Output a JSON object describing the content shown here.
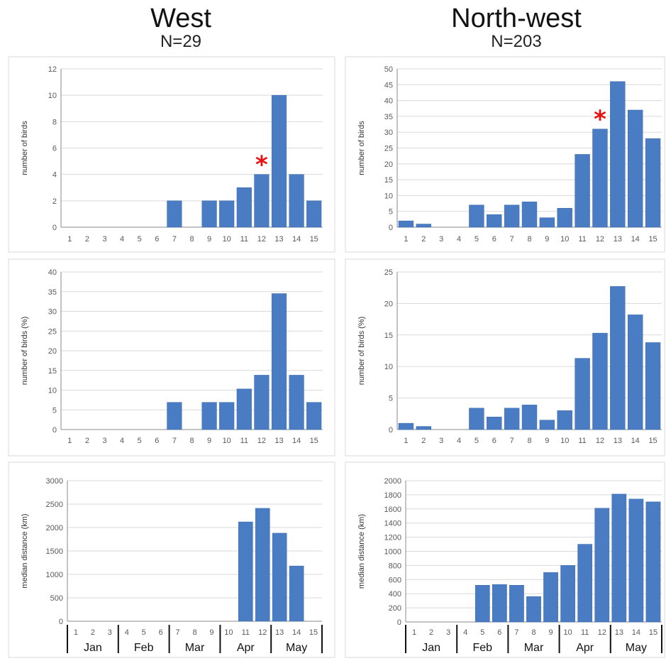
{
  "headers": {
    "left_title": "West",
    "left_n": "N=29",
    "right_title": "North-west",
    "right_n": "N=203"
  },
  "months": [
    "Jan",
    "Feb",
    "Mar",
    "Apr",
    "May"
  ],
  "colors": {
    "bar": "#4a7cc4",
    "star": "#e81010"
  },
  "chart_data": [
    {
      "id": "west-count",
      "type": "bar",
      "categories": [
        "1",
        "2",
        "3",
        "4",
        "5",
        "6",
        "7",
        "8",
        "9",
        "10",
        "11",
        "12",
        "13",
        "14",
        "15"
      ],
      "values": [
        0,
        0,
        0,
        0,
        0,
        0,
        2,
        0,
        2,
        2,
        3,
        4,
        10,
        4,
        2
      ],
      "ylabel": "number of birds",
      "ylim": [
        0,
        12
      ],
      "yticks": [
        0,
        2,
        4,
        6,
        8,
        10,
        12
      ],
      "grid": true,
      "annotation": {
        "symbol": "*",
        "category": "12"
      }
    },
    {
      "id": "northwest-count",
      "type": "bar",
      "categories": [
        "1",
        "2",
        "3",
        "4",
        "5",
        "6",
        "7",
        "8",
        "9",
        "10",
        "11",
        "12",
        "13",
        "14",
        "15"
      ],
      "values": [
        2,
        1,
        0,
        0,
        7,
        4,
        7,
        8,
        3,
        6,
        23,
        31,
        46,
        37,
        28
      ],
      "ylabel": "number of birds",
      "ylim": [
        0,
        50
      ],
      "yticks": [
        0,
        5,
        10,
        15,
        20,
        25,
        30,
        35,
        40,
        45,
        50
      ],
      "grid": true,
      "annotation": {
        "symbol": "*",
        "category": "12"
      }
    },
    {
      "id": "west-percent",
      "type": "bar",
      "categories": [
        "1",
        "2",
        "3",
        "4",
        "5",
        "6",
        "7",
        "8",
        "9",
        "10",
        "11",
        "12",
        "13",
        "14",
        "15"
      ],
      "values": [
        0,
        0,
        0,
        0,
        0,
        0,
        6.9,
        0,
        6.9,
        6.9,
        10.3,
        13.8,
        34.5,
        13.8,
        6.9
      ],
      "ylabel": "number of birds (%)",
      "ylim": [
        0,
        40
      ],
      "yticks": [
        0,
        5,
        10,
        15,
        20,
        25,
        30,
        35,
        40
      ],
      "grid": true
    },
    {
      "id": "northwest-percent",
      "type": "bar",
      "categories": [
        "1",
        "2",
        "3",
        "4",
        "5",
        "6",
        "7",
        "8",
        "9",
        "10",
        "11",
        "12",
        "13",
        "14",
        "15"
      ],
      "values": [
        1.0,
        0.5,
        0,
        0,
        3.4,
        2.0,
        3.4,
        3.9,
        1.5,
        3.0,
        11.3,
        15.3,
        22.7,
        18.2,
        13.8
      ],
      "ylabel": "number of birds (%)",
      "ylim": [
        0,
        25
      ],
      "yticks": [
        0,
        5,
        10,
        15,
        20,
        25
      ],
      "grid": true
    },
    {
      "id": "west-distance",
      "type": "bar",
      "categories": [
        "1",
        "2",
        "3",
        "4",
        "5",
        "6",
        "7",
        "8",
        "9",
        "10",
        "11",
        "12",
        "13",
        "14",
        "15"
      ],
      "values": [
        0,
        0,
        0,
        0,
        0,
        0,
        0,
        0,
        0,
        0,
        2120,
        2410,
        1880,
        1180,
        0
      ],
      "ylabel": "median distance (km)",
      "ylim": [
        0,
        3000
      ],
      "yticks": [
        0,
        500,
        1000,
        1500,
        2000,
        2500,
        3000
      ],
      "grid": true,
      "month_groups": true
    },
    {
      "id": "northwest-distance",
      "type": "bar",
      "categories": [
        "1",
        "2",
        "3",
        "4",
        "5",
        "6",
        "7",
        "8",
        "9",
        "10",
        "11",
        "12",
        "13",
        "14",
        "15"
      ],
      "values": [
        0,
        0,
        0,
        0,
        520,
        530,
        520,
        360,
        700,
        800,
        1100,
        1610,
        1810,
        1740,
        1700
      ],
      "ylabel": "median distance (km)",
      "ylim": [
        0,
        2000
      ],
      "yticks": [
        0,
        200,
        400,
        600,
        800,
        1000,
        1200,
        1400,
        1600,
        1800,
        2000
      ],
      "grid": true,
      "month_groups": true
    }
  ]
}
